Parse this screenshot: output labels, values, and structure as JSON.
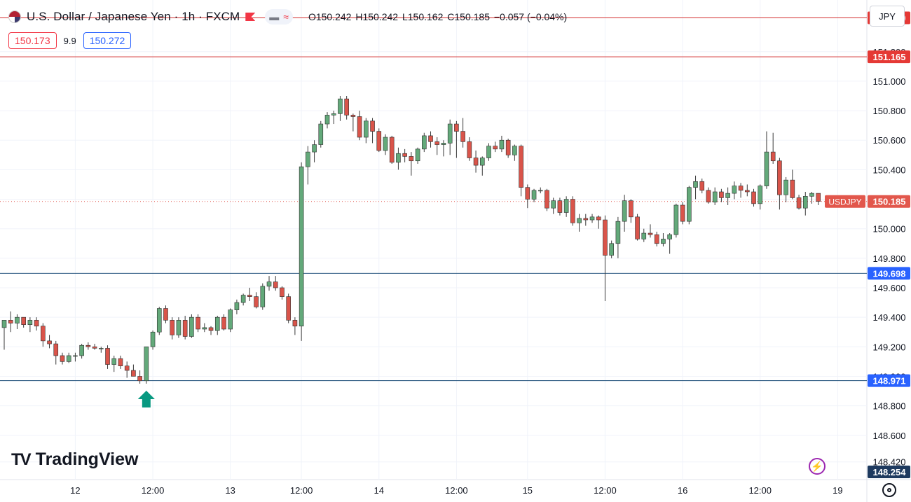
{
  "header": {
    "title": "U.S. Dollar / Japanese Yen · 1h · FXCM",
    "ohlc": [
      "O150.242",
      "H150.242",
      "L150.162",
      "C150.185",
      "−0.057 (−0.04%)"
    ],
    "bid": "150.173",
    "spread": "9.9",
    "ask": "150.272",
    "currency_button": "JPY"
  },
  "logo_text": "TradingView",
  "colors": {
    "up": "#26a69a",
    "down": "#ef5350",
    "bull_body": "#63a97a",
    "bear_body": "#d9544a",
    "resistance": "#d32f2f",
    "support": "#1e4e79",
    "arrow": "#089981",
    "price_tag": "#e2574c"
  },
  "chart_data": {
    "type": "candlestick",
    "symbol": "USDJPY",
    "interval": "1h",
    "ylim": [
      148.3,
      151.55
    ],
    "y_ticks": [
      "148.420",
      "148.600",
      "148.800",
      "149.000",
      "149.200",
      "149.400",
      "149.600",
      "149.800",
      "150.000",
      "150.200",
      "150.400",
      "150.600",
      "150.800",
      "151.000",
      "151.200"
    ],
    "x_ticks": [
      "12",
      "12:00",
      "13",
      "12:00",
      "14",
      "12:00",
      "15",
      "12:00",
      "16",
      "12:00",
      "19"
    ],
    "last_price": {
      "label": "USDJPY",
      "value": "150.185"
    },
    "horizontal_lines": [
      {
        "value": 151.429,
        "label": "151.429",
        "kind": "resistance"
      },
      {
        "value": 151.165,
        "label": "151.165",
        "kind": "resistance"
      },
      {
        "value": 149.698,
        "label": "149.698",
        "kind": "support"
      },
      {
        "value": 148.971,
        "label": "148.971",
        "kind": "support"
      }
    ],
    "bottom_label": "148.254",
    "arrow": {
      "candle_index": 23,
      "direction": "up"
    },
    "candles": [
      [
        149.33,
        149.38,
        149.18,
        149.38
      ],
      [
        149.38,
        149.44,
        149.3,
        149.36
      ],
      [
        149.36,
        149.42,
        149.32,
        149.4
      ],
      [
        149.4,
        149.4,
        149.33,
        149.35
      ],
      [
        149.35,
        149.4,
        149.3,
        149.38
      ],
      [
        149.38,
        149.4,
        149.31,
        149.34
      ],
      [
        149.34,
        149.36,
        149.2,
        149.24
      ],
      [
        149.24,
        149.28,
        149.19,
        149.22
      ],
      [
        149.22,
        149.24,
        149.08,
        149.14
      ],
      [
        149.14,
        149.16,
        149.08,
        149.1
      ],
      [
        149.1,
        149.16,
        149.09,
        149.14
      ],
      [
        149.14,
        149.16,
        149.1,
        149.14
      ],
      [
        149.14,
        149.22,
        149.12,
        149.21
      ],
      [
        149.21,
        149.23,
        149.18,
        149.2
      ],
      [
        149.2,
        149.22,
        149.18,
        149.19
      ],
      [
        149.19,
        149.2,
        149.16,
        149.19
      ],
      [
        149.19,
        149.21,
        149.05,
        149.08
      ],
      [
        149.08,
        149.14,
        149.03,
        149.12
      ],
      [
        149.12,
        149.14,
        149.05,
        149.07
      ],
      [
        149.07,
        149.1,
        148.99,
        149.04
      ],
      [
        149.04,
        149.08,
        149.0,
        149.0
      ],
      [
        149.0,
        149.04,
        148.95,
        148.97
      ],
      [
        148.97,
        149.2,
        148.95,
        149.2
      ],
      [
        149.2,
        149.31,
        149.18,
        149.3
      ],
      [
        149.3,
        149.47,
        149.28,
        149.46
      ],
      [
        149.46,
        149.48,
        149.36,
        149.38
      ],
      [
        149.38,
        149.4,
        149.25,
        149.28
      ],
      [
        149.28,
        149.4,
        149.26,
        149.38
      ],
      [
        149.38,
        149.41,
        149.25,
        149.27
      ],
      [
        149.27,
        149.42,
        149.26,
        149.4
      ],
      [
        149.4,
        149.42,
        149.3,
        149.32
      ],
      [
        149.32,
        149.36,
        149.3,
        149.33
      ],
      [
        149.33,
        149.34,
        149.28,
        149.31
      ],
      [
        149.31,
        149.41,
        149.28,
        149.4
      ],
      [
        149.4,
        149.42,
        149.31,
        149.32
      ],
      [
        149.32,
        149.46,
        149.3,
        149.45
      ],
      [
        149.45,
        149.52,
        149.42,
        149.5
      ],
      [
        149.5,
        149.56,
        149.48,
        149.55
      ],
      [
        149.55,
        149.6,
        149.51,
        149.54
      ],
      [
        149.54,
        149.57,
        149.46,
        149.47
      ],
      [
        149.47,
        149.63,
        149.45,
        149.61
      ],
      [
        149.61,
        149.68,
        149.58,
        149.64
      ],
      [
        149.64,
        149.68,
        149.58,
        149.6
      ],
      [
        149.6,
        149.61,
        149.52,
        149.54
      ],
      [
        149.54,
        149.56,
        149.36,
        149.38
      ],
      [
        149.38,
        149.4,
        149.28,
        149.34
      ],
      [
        149.34,
        150.45,
        149.24,
        150.42
      ],
      [
        150.42,
        150.56,
        150.3,
        150.52
      ],
      [
        150.52,
        150.6,
        150.45,
        150.57
      ],
      [
        150.57,
        150.73,
        150.55,
        150.71
      ],
      [
        150.71,
        150.79,
        150.68,
        150.77
      ],
      [
        150.77,
        150.8,
        150.71,
        150.78
      ],
      [
        150.78,
        150.9,
        150.73,
        150.88
      ],
      [
        150.88,
        150.9,
        150.74,
        150.77
      ],
      [
        150.77,
        150.78,
        150.66,
        150.76
      ],
      [
        150.76,
        150.8,
        150.6,
        150.62
      ],
      [
        150.62,
        150.75,
        150.58,
        150.73
      ],
      [
        150.73,
        150.75,
        150.58,
        150.66
      ],
      [
        150.66,
        150.68,
        150.52,
        150.53
      ],
      [
        150.53,
        150.64,
        150.5,
        150.62
      ],
      [
        150.62,
        150.63,
        150.44,
        150.45
      ],
      [
        150.45,
        150.55,
        150.4,
        150.51
      ],
      [
        150.51,
        150.54,
        150.45,
        150.49
      ],
      [
        150.49,
        150.52,
        150.36,
        150.46
      ],
      [
        150.46,
        150.55,
        150.44,
        150.54
      ],
      [
        150.54,
        150.65,
        150.52,
        150.63
      ],
      [
        150.63,
        150.66,
        150.55,
        150.59
      ],
      [
        150.59,
        150.62,
        150.5,
        150.57
      ],
      [
        150.57,
        150.6,
        150.49,
        150.58
      ],
      [
        150.58,
        150.74,
        150.5,
        150.71
      ],
      [
        150.71,
        150.73,
        150.48,
        150.66
      ],
      [
        150.66,
        150.75,
        150.55,
        150.59
      ],
      [
        150.59,
        150.62,
        150.46,
        150.48
      ],
      [
        150.48,
        150.53,
        150.38,
        150.43
      ],
      [
        150.43,
        150.49,
        150.36,
        150.48
      ],
      [
        150.48,
        150.58,
        150.46,
        150.56
      ],
      [
        150.56,
        150.59,
        150.52,
        150.54
      ],
      [
        150.54,
        150.63,
        150.52,
        150.6
      ],
      [
        150.6,
        150.61,
        150.48,
        150.5
      ],
      [
        150.5,
        150.57,
        150.46,
        150.56
      ],
      [
        150.56,
        150.57,
        150.22,
        150.28
      ],
      [
        150.28,
        150.3,
        150.14,
        150.2
      ],
      [
        150.2,
        150.27,
        150.18,
        150.26
      ],
      [
        150.26,
        150.28,
        150.24,
        150.26
      ],
      [
        150.26,
        150.27,
        150.12,
        150.14
      ],
      [
        150.14,
        150.21,
        150.1,
        150.19
      ],
      [
        150.19,
        150.21,
        150.09,
        150.11
      ],
      [
        150.11,
        150.22,
        150.08,
        150.2
      ],
      [
        150.2,
        150.22,
        150.02,
        150.04
      ],
      [
        150.04,
        150.1,
        149.98,
        150.07
      ],
      [
        150.07,
        150.1,
        150.02,
        150.06
      ],
      [
        150.06,
        150.1,
        150.04,
        150.08
      ],
      [
        150.08,
        150.09,
        150.0,
        150.06
      ],
      [
        150.06,
        150.09,
        149.51,
        149.82
      ],
      [
        149.82,
        149.92,
        149.8,
        149.9
      ],
      [
        149.9,
        150.08,
        149.8,
        150.05
      ],
      [
        150.05,
        150.23,
        149.98,
        150.19
      ],
      [
        150.19,
        150.2,
        150.04,
        150.08
      ],
      [
        150.08,
        150.1,
        149.92,
        149.93
      ],
      [
        149.93,
        150.0,
        149.91,
        149.97
      ],
      [
        149.97,
        150.03,
        149.94,
        149.96
      ],
      [
        149.96,
        149.98,
        149.88,
        149.9
      ],
      [
        149.9,
        149.97,
        149.88,
        149.93
      ],
      [
        149.93,
        149.97,
        149.83,
        149.96
      ],
      [
        149.96,
        150.17,
        149.94,
        150.16
      ],
      [
        150.16,
        150.18,
        150.03,
        150.05
      ],
      [
        150.05,
        150.29,
        150.03,
        150.28
      ],
      [
        150.28,
        150.36,
        150.2,
        150.32
      ],
      [
        150.32,
        150.34,
        150.24,
        150.26
      ],
      [
        150.26,
        150.28,
        150.17,
        150.18
      ],
      [
        150.18,
        150.28,
        150.16,
        150.25
      ],
      [
        150.25,
        150.27,
        150.18,
        150.21
      ],
      [
        150.21,
        150.28,
        150.16,
        150.24
      ],
      [
        150.24,
        150.32,
        150.2,
        150.29
      ],
      [
        150.29,
        150.31,
        150.21,
        150.26
      ],
      [
        150.26,
        150.3,
        150.22,
        150.25
      ],
      [
        150.25,
        150.27,
        150.15,
        150.17
      ],
      [
        150.17,
        150.3,
        150.13,
        150.29
      ],
      [
        150.29,
        150.66,
        150.27,
        150.52
      ],
      [
        150.52,
        150.65,
        150.44,
        150.46
      ],
      [
        150.46,
        150.48,
        150.13,
        150.23
      ],
      [
        150.23,
        150.35,
        150.18,
        150.33
      ],
      [
        150.33,
        150.4,
        150.2,
        150.21
      ],
      [
        150.21,
        150.23,
        150.13,
        150.14
      ],
      [
        150.14,
        150.25,
        150.09,
        150.22
      ],
      [
        150.22,
        150.25,
        150.17,
        150.24
      ],
      [
        150.24,
        150.24,
        150.16,
        150.185
      ]
    ]
  }
}
